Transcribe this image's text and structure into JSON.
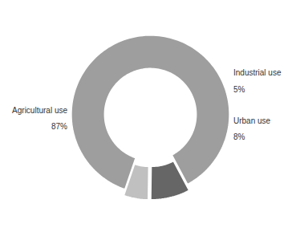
{
  "chart_data": {
    "type": "pie",
    "categories": [
      "Agricultural use",
      "Industrial use",
      "Urban use"
    ],
    "values": [
      87,
      5,
      8
    ],
    "value_labels": [
      "87%",
      "5%",
      "8%"
    ],
    "colors": [
      "#9e9e9e",
      "#c0c0c0",
      "#666666"
    ],
    "data_labels": true
  }
}
